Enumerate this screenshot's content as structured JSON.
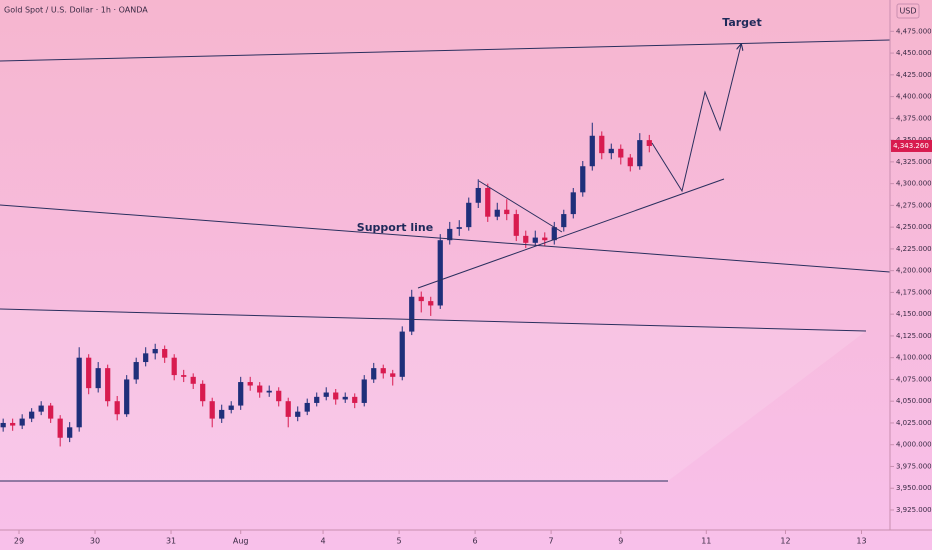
{
  "chart_data": {
    "type": "candlestick",
    "title": "Gold Spot / U.S. Dollar · 1h · OANDA",
    "currency": "USD",
    "last_price_label": "4,343.260",
    "annotations": [
      "Support line",
      "Target"
    ],
    "up_color": "#1f2f7a",
    "down_color": "#d81b4f",
    "xlim": [
      0,
      281
    ],
    "xticks": [
      {
        "value": 6,
        "label": "29"
      },
      {
        "value": 30,
        "label": "30"
      },
      {
        "value": 54,
        "label": "31"
      },
      {
        "value": 76,
        "label": "Aug"
      },
      {
        "value": 102,
        "label": "4"
      },
      {
        "value": 126,
        "label": "5"
      },
      {
        "value": 150,
        "label": "6"
      },
      {
        "value": 174,
        "label": "7"
      },
      {
        "value": 196,
        "label": "9"
      },
      {
        "value": 223,
        "label": "11"
      },
      {
        "value": 248,
        "label": "12"
      },
      {
        "value": 272,
        "label": "13"
      }
    ],
    "ylim": [
      3902,
      4511
    ],
    "yticks": [
      {
        "value": 3925,
        "label": "3,925.000"
      },
      {
        "value": 3950,
        "label": "3,950.000"
      },
      {
        "value": 3975,
        "label": "3,975.000"
      },
      {
        "value": 4000,
        "label": "4,000.000"
      },
      {
        "value": 4025,
        "label": "4,025.000"
      },
      {
        "value": 4050,
        "label": "4,050.000"
      },
      {
        "value": 4075,
        "label": "4,075.000"
      },
      {
        "value": 4100,
        "label": "4,100.000"
      },
      {
        "value": 4125,
        "label": "4,125.000"
      },
      {
        "value": 4150,
        "label": "4,150.000"
      },
      {
        "value": 4175,
        "label": "4,175.000"
      },
      {
        "value": 4200,
        "label": "4,200.000"
      },
      {
        "value": 4225,
        "label": "4,225.000"
      },
      {
        "value": 4250,
        "label": "4,250.000"
      },
      {
        "value": 4275,
        "label": "4,275.000"
      },
      {
        "value": 4300,
        "label": "4,300.000"
      },
      {
        "value": 4325,
        "label": "4,325.000"
      },
      {
        "value": 4350,
        "label": "4,350.000"
      },
      {
        "value": 4375,
        "label": "4,375.000"
      },
      {
        "value": 4400,
        "label": "4,400.000"
      },
      {
        "value": 4425,
        "label": "4,425.000"
      },
      {
        "value": 4450,
        "label": "4,450.000"
      },
      {
        "value": 4475,
        "label": "4,475.000"
      }
    ],
    "x": [
      1,
      4,
      7,
      10,
      13,
      16,
      19,
      22,
      25,
      28,
      31,
      34,
      37,
      40,
      43,
      46,
      49,
      52,
      55,
      58,
      61,
      64,
      67,
      70,
      73,
      76,
      79,
      82,
      85,
      88,
      91,
      94,
      97,
      100,
      103,
      106,
      109,
      112,
      115,
      118,
      121,
      124,
      127,
      130,
      133,
      136,
      139,
      142,
      145,
      148,
      151,
      154,
      157,
      160,
      163,
      166,
      169,
      172,
      175,
      178,
      181,
      184,
      187,
      190,
      193,
      196,
      199,
      202,
      205
    ],
    "ohlc": [
      [
        4020,
        4030,
        4015,
        4025
      ],
      [
        4025,
        4030,
        4016,
        4022
      ],
      [
        4022,
        4035,
        4018,
        4030
      ],
      [
        4030,
        4042,
        4026,
        4038
      ],
      [
        4038,
        4050,
        4034,
        4045
      ],
      [
        4045,
        4048,
        4025,
        4030
      ],
      [
        4030,
        4034,
        3998,
        4008
      ],
      [
        4008,
        4026,
        4003,
        4020
      ],
      [
        4020,
        4112,
        4015,
        4100
      ],
      [
        4100,
        4104,
        4058,
        4065
      ],
      [
        4065,
        4095,
        4060,
        4088
      ],
      [
        4088,
        4092,
        4044,
        4050
      ],
      [
        4050,
        4056,
        4028,
        4035
      ],
      [
        4035,
        4080,
        4032,
        4075
      ],
      [
        4075,
        4100,
        4070,
        4095
      ],
      [
        4095,
        4112,
        4090,
        4105
      ],
      [
        4105,
        4116,
        4098,
        4110
      ],
      [
        4110,
        4114,
        4094,
        4100
      ],
      [
        4100,
        4104,
        4074,
        4080
      ],
      [
        4080,
        4086,
        4072,
        4078
      ],
      [
        4078,
        4082,
        4064,
        4070
      ],
      [
        4070,
        4074,
        4044,
        4050
      ],
      [
        4050,
        4054,
        4020,
        4030
      ],
      [
        4030,
        4046,
        4025,
        4040
      ],
      [
        4040,
        4050,
        4036,
        4045
      ],
      [
        4045,
        4078,
        4040,
        4072
      ],
      [
        4072,
        4078,
        4062,
        4068
      ],
      [
        4068,
        4072,
        4054,
        4060
      ],
      [
        4060,
        4068,
        4055,
        4062
      ],
      [
        4062,
        4066,
        4044,
        4050
      ],
      [
        4050,
        4054,
        4020,
        4032
      ],
      [
        4032,
        4044,
        4027,
        4038
      ],
      [
        4038,
        4053,
        4034,
        4048
      ],
      [
        4048,
        4060,
        4044,
        4055
      ],
      [
        4055,
        4066,
        4051,
        4060
      ],
      [
        4060,
        4064,
        4046,
        4052
      ],
      [
        4052,
        4060,
        4048,
        4055
      ],
      [
        4055,
        4059,
        4042,
        4048
      ],
      [
        4048,
        4080,
        4044,
        4075
      ],
      [
        4075,
        4094,
        4071,
        4088
      ],
      [
        4088,
        4092,
        4076,
        4082
      ],
      [
        4082,
        4086,
        4068,
        4078
      ],
      [
        4078,
        4136,
        4074,
        4130
      ],
      [
        4130,
        4178,
        4126,
        4170
      ],
      [
        4170,
        4176,
        4152,
        4165
      ],
      [
        4165,
        4170,
        4148,
        4160
      ],
      [
        4160,
        4242,
        4156,
        4235
      ],
      [
        4235,
        4256,
        4230,
        4248
      ],
      [
        4248,
        4258,
        4240,
        4250
      ],
      [
        4250,
        4284,
        4246,
        4278
      ],
      [
        4278,
        4305,
        4272,
        4295
      ],
      [
        4295,
        4300,
        4256,
        4262
      ],
      [
        4262,
        4278,
        4258,
        4270
      ],
      [
        4270,
        4282,
        4258,
        4265
      ],
      [
        4265,
        4270,
        4234,
        4240
      ],
      [
        4240,
        4246,
        4226,
        4232
      ],
      [
        4232,
        4246,
        4228,
        4238
      ],
      [
        4238,
        4244,
        4228,
        4235
      ],
      [
        4235,
        4256,
        4230,
        4250
      ],
      [
        4250,
        4270,
        4245,
        4265
      ],
      [
        4265,
        4295,
        4260,
        4290
      ],
      [
        4290,
        4326,
        4285,
        4320
      ],
      [
        4320,
        4370,
        4315,
        4355
      ],
      [
        4355,
        4360,
        4328,
        4335
      ],
      [
        4335,
        4346,
        4328,
        4340
      ],
      [
        4340,
        4345,
        4322,
        4330
      ],
      [
        4330,
        4334,
        4314,
        4320
      ],
      [
        4320,
        4358,
        4316,
        4350
      ],
      [
        4350,
        4356,
        4336,
        4343.26
      ]
    ]
  }
}
